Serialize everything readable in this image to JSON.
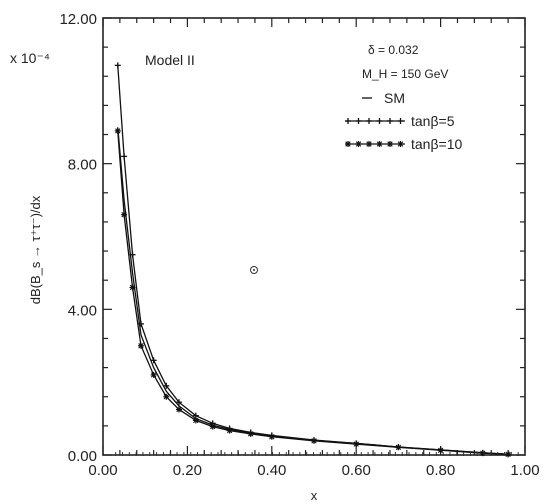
{
  "chart_data": {
    "type": "line",
    "model_label": "Model II",
    "multiplier": "x 10⁻⁴",
    "xlabel": "x",
    "ylabel": "dB(B_s → τ⁺τ⁻)/dx",
    "xlim": [
      0.0,
      1.0
    ],
    "ylim": [
      0.0,
      12.0
    ],
    "x_ticks": [
      0.0,
      0.2,
      0.4,
      0.6,
      0.8,
      1.0
    ],
    "x_tick_labels": [
      "0.00",
      "0.20",
      "0.40",
      "0.60",
      "0.80",
      "1.00"
    ],
    "y_ticks": [
      0.0,
      4.0,
      8.0,
      12.0
    ],
    "y_tick_labels": [
      "0.00",
      "4.00",
      "8.00",
      "12.00"
    ],
    "params": [
      {
        "text": "δ  =  0.032"
      },
      {
        "text": "M_H  =  150  GeV"
      }
    ],
    "series": [
      {
        "name": "SM",
        "style": "solid",
        "x": [
          0.035,
          0.05,
          0.07,
          0.09,
          0.12,
          0.15,
          0.18,
          0.22,
          0.26,
          0.3,
          0.35,
          0.4,
          0.5,
          0.6,
          0.7,
          0.8,
          0.9,
          0.96
        ],
        "y": [
          9.0,
          7.0,
          5.0,
          3.3,
          2.4,
          1.75,
          1.35,
          1.0,
          0.82,
          0.7,
          0.6,
          0.52,
          0.4,
          0.32,
          0.22,
          0.14,
          0.06,
          0.02
        ]
      },
      {
        "name": "tanβ=5",
        "style": "plus",
        "x": [
          0.035,
          0.05,
          0.07,
          0.09,
          0.12,
          0.15,
          0.18,
          0.22,
          0.26,
          0.3,
          0.35,
          0.4,
          0.5,
          0.6,
          0.7,
          0.8,
          0.9,
          0.96
        ],
        "y": [
          10.7,
          8.2,
          5.5,
          3.6,
          2.6,
          1.9,
          1.45,
          1.08,
          0.87,
          0.73,
          0.62,
          0.54,
          0.41,
          0.32,
          0.22,
          0.14,
          0.06,
          0.02
        ]
      },
      {
        "name": "tanβ=10",
        "style": "star",
        "x": [
          0.035,
          0.05,
          0.07,
          0.09,
          0.12,
          0.15,
          0.18,
          0.22,
          0.26,
          0.3,
          0.35,
          0.4,
          0.5,
          0.6,
          0.7,
          0.8,
          0.9,
          0.96
        ],
        "y": [
          8.9,
          6.6,
          4.6,
          3.0,
          2.2,
          1.6,
          1.25,
          0.95,
          0.78,
          0.67,
          0.58,
          0.5,
          0.39,
          0.3,
          0.21,
          0.13,
          0.05,
          0.02
        ]
      }
    ]
  }
}
